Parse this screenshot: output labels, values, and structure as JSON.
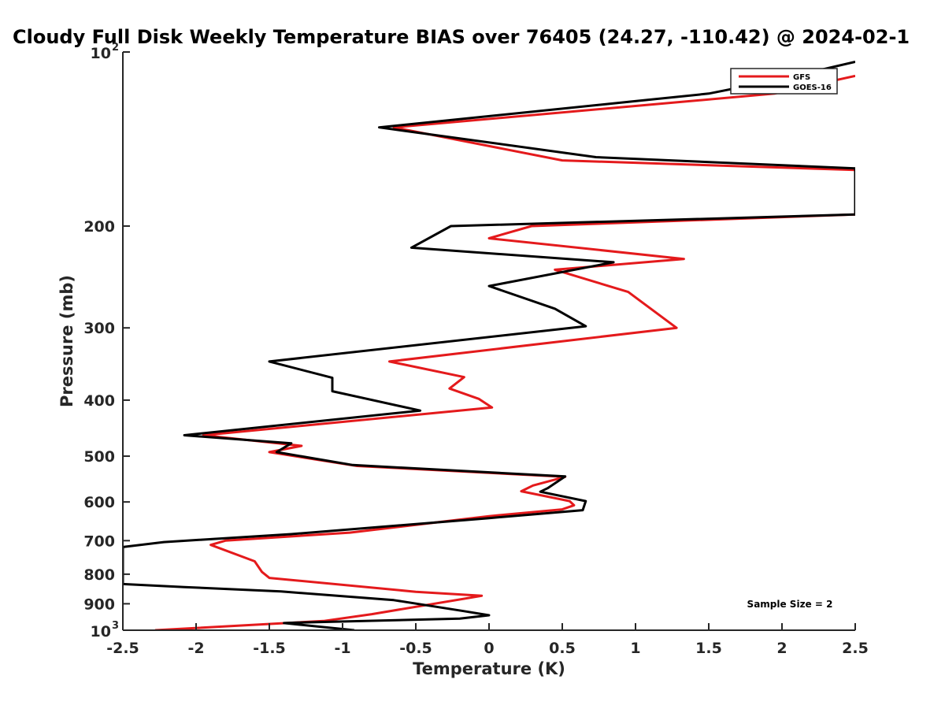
{
  "chart_data": {
    "type": "line",
    "title": "Cloudy Full Disk Weekly Temperature BIAS over 76405 (24.27, -110.42) @ 2024-02-1",
    "xlabel": "Temperature (K)",
    "ylabel": "Pressure (mb)",
    "xlim": [
      -2.5,
      2.5
    ],
    "ylim": [
      100,
      1000
    ],
    "y_scale": "log",
    "y_reversed": true,
    "grid": false,
    "legend_position": "top-right",
    "x_ticks": [
      -2.5,
      -2,
      -1.5,
      -1,
      -0.5,
      0,
      0.5,
      1,
      1.5,
      2,
      2.5
    ],
    "x_tick_labels": [
      "-2.5",
      "-2",
      "-1.5",
      "-1",
      "-0.5",
      "0",
      "0.5",
      "1",
      "1.5",
      "2",
      "2.5"
    ],
    "y_ticks": [
      100,
      200,
      300,
      400,
      500,
      600,
      700,
      800,
      900,
      1000
    ],
    "y_tick_labels": [
      {
        "base": "10",
        "exp": "2"
      },
      {
        "base": "200",
        "exp": ""
      },
      {
        "base": "300",
        "exp": ""
      },
      {
        "base": "400",
        "exp": ""
      },
      {
        "base": "500",
        "exp": ""
      },
      {
        "base": "600",
        "exp": ""
      },
      {
        "base": "700",
        "exp": ""
      },
      {
        "base": "800",
        "exp": ""
      },
      {
        "base": "900",
        "exp": ""
      },
      {
        "base": "10",
        "exp": "3"
      }
    ],
    "annotation": "Sample Size = 2",
    "series": [
      {
        "name": "GFS",
        "color": "#e41a1c",
        "points": [
          [
            2.5,
            110
          ],
          [
            1.95,
            118
          ],
          [
            -0.65,
            135
          ],
          [
            0.5,
            154
          ],
          [
            2.5,
            160
          ],
          [
            2.5,
            191
          ],
          [
            0.29,
            200
          ],
          [
            0.0,
            210
          ],
          [
            1.33,
            228
          ],
          [
            0.45,
            238
          ],
          [
            0.95,
            260
          ],
          [
            1.28,
            300
          ],
          [
            -0.68,
            343
          ],
          [
            -0.17,
            365
          ],
          [
            -0.27,
            382
          ],
          [
            -0.07,
            398
          ],
          [
            0.02,
            412
          ],
          [
            -1.95,
            460
          ],
          [
            -1.28,
            480
          ],
          [
            -1.5,
            492
          ],
          [
            -0.9,
            520
          ],
          [
            0.52,
            543
          ],
          [
            0.3,
            562
          ],
          [
            0.22,
            575
          ],
          [
            0.55,
            598
          ],
          [
            0.58,
            608
          ],
          [
            0.5,
            618
          ],
          [
            0.0,
            635
          ],
          [
            -0.95,
            678
          ],
          [
            -1.8,
            700
          ],
          [
            -1.9,
            712
          ],
          [
            -1.6,
            760
          ],
          [
            -1.55,
            793
          ],
          [
            -1.5,
            812
          ],
          [
            -0.5,
            858
          ],
          [
            -0.05,
            872
          ],
          [
            -0.8,
            938
          ],
          [
            -1.13,
            964
          ],
          [
            -2.28,
            1000
          ]
        ]
      },
      {
        "name": "GOES-16",
        "color": "#000000",
        "points": [
          [
            2.5,
            104
          ],
          [
            1.95,
            112
          ],
          [
            1.5,
            118
          ],
          [
            -0.75,
            135
          ],
          [
            0.73,
            152
          ],
          [
            2.5,
            159
          ],
          [
            2.5,
            191
          ],
          [
            -0.26,
            200
          ],
          [
            -0.53,
            218
          ],
          [
            0.85,
            231
          ],
          [
            0.0,
            254
          ],
          [
            0.45,
            278
          ],
          [
            0.66,
            298
          ],
          [
            -1.5,
            343
          ],
          [
            -1.07,
            366
          ],
          [
            -1.07,
            386
          ],
          [
            -0.47,
            417
          ],
          [
            -2.08,
            460
          ],
          [
            -1.35,
            475
          ],
          [
            -1.45,
            492
          ],
          [
            -0.93,
            518
          ],
          [
            0.52,
            542
          ],
          [
            0.4,
            568
          ],
          [
            0.35,
            576
          ],
          [
            0.66,
            598
          ],
          [
            0.64,
            620
          ],
          [
            0.0,
            640
          ],
          [
            -1.35,
            682
          ],
          [
            -2.22,
            704
          ],
          [
            -2.5,
            718
          ],
          [
            -2.5,
            832
          ],
          [
            -2.08,
            842
          ],
          [
            -1.42,
            857
          ],
          [
            -0.65,
            887
          ],
          [
            -0.17,
            927
          ],
          [
            0.0,
            942
          ],
          [
            -0.2,
            955
          ],
          [
            -1.3,
            970
          ],
          [
            -1.4,
            972
          ],
          [
            -0.92,
            1000
          ]
        ]
      }
    ]
  }
}
